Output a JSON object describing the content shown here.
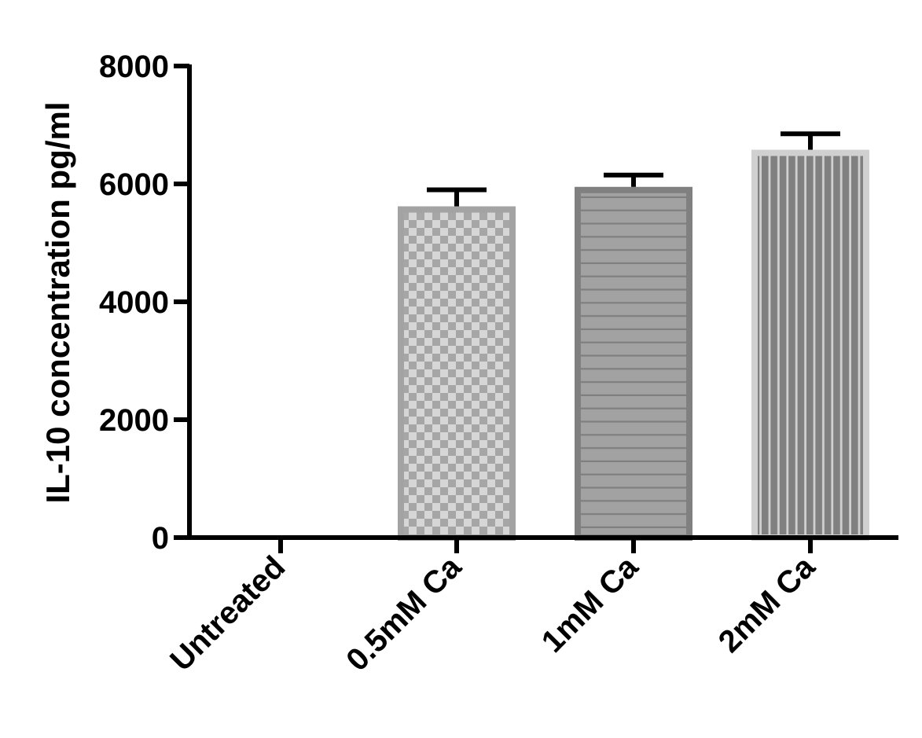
{
  "chart_data": {
    "type": "bar",
    "title": "",
    "xlabel": "",
    "ylabel": "IL-10 concentration pg/ml",
    "categories": [
      "Untreated",
      "0.5mM Ca",
      "1mM Ca",
      "2mM Ca"
    ],
    "values": [
      0,
      5620,
      5950,
      6580
    ],
    "error_upper": [
      0,
      280,
      200,
      270
    ],
    "ylim": [
      0,
      8000
    ],
    "yticks": [
      0,
      2000,
      4000,
      6000,
      8000
    ],
    "ytick_labels": [
      "0",
      "2000",
      "4000",
      "6000",
      "8000"
    ],
    "grid": false,
    "legend": "none",
    "bar_patterns": [
      "none",
      "checkerboard",
      "horizontal-lines",
      "vertical-lines"
    ],
    "colors": {
      "axis": "#000000",
      "checker_light": "#d6d6d6",
      "checker_dark": "#a6a6a6",
      "checker_border": "#a3a3a3",
      "hlines_fill": "#a2a2a2",
      "hlines_line": "#7f7f7f",
      "hlines_border": "#808080",
      "vlines_dark": "#808080",
      "vlines_light": "#d0d0d0",
      "vlines_border": "#d0d0d0",
      "error_bar": "#000000"
    }
  }
}
